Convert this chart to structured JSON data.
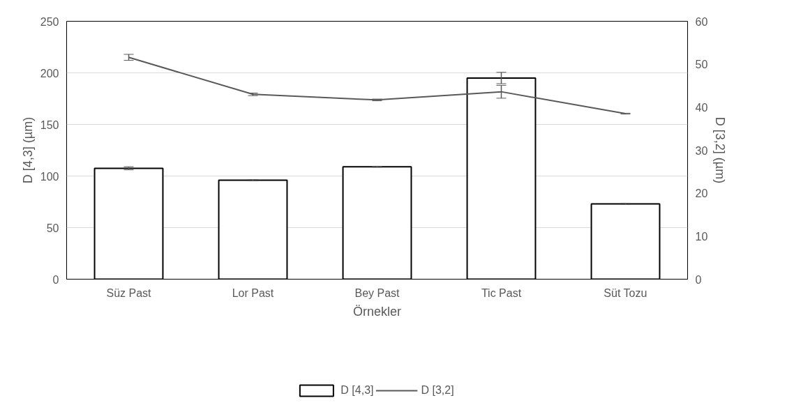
{
  "chart_data": {
    "type": "bar",
    "xlabel": "Örnekler",
    "ylabel": "D [4,3] (µm)",
    "y2label": "D [3,2] (µm)",
    "categories": [
      "Süz Past",
      "Lor Past",
      "Bey Past",
      "Tic Past",
      "Süt Tozu"
    ],
    "series": [
      {
        "name": "D [4,3]",
        "color": "#ffffff",
        "values": [
          107.5,
          96,
          109,
          195,
          73
        ],
        "errors": [
          1.5,
          0.5,
          0.5,
          5.5,
          0.5
        ]
      },
      {
        "name": "D [3,2]",
        "type": "line",
        "axis": "y2",
        "color": "#595959",
        "values": [
          51.6,
          43.0,
          41.7,
          43.6,
          38.5
        ],
        "errors": [
          0.7,
          0.3,
          0.2,
          1.5,
          0.1
        ]
      }
    ],
    "ylim": [
      0,
      250
    ],
    "yticks": [
      0,
      50,
      100,
      150,
      200,
      250
    ],
    "y2lim": [
      0,
      60
    ],
    "y2ticks": [
      0,
      10,
      20,
      30,
      40,
      50,
      60
    ],
    "grid": "y",
    "legend": "bottom",
    "marker": "none",
    "line_style": "solid"
  }
}
